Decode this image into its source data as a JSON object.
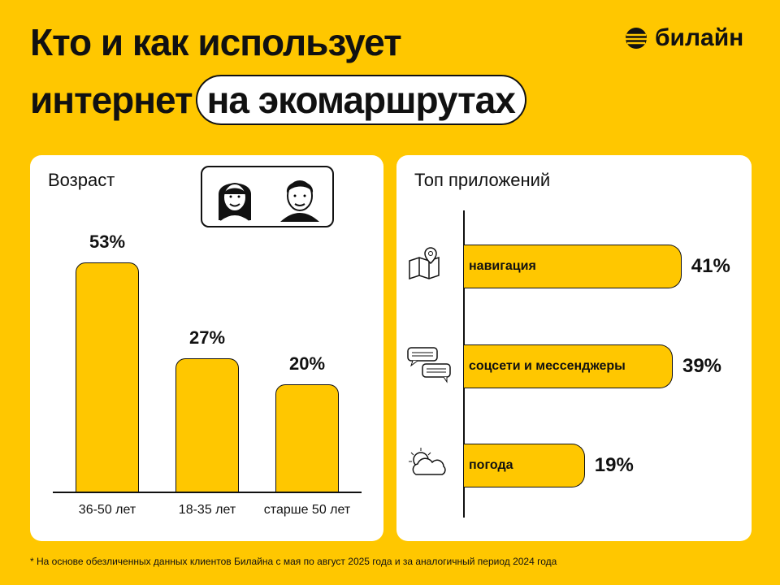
{
  "title_line1": "Кто и как использует",
  "title_line2": "интернет",
  "title_highlight": "на экомаршрутах",
  "brand": "билайн",
  "footnote": "* На основе обезличенных данных клиентов Билайна с мая по август 2025 года и за аналогичный период 2024 года",
  "colors": {
    "accent": "#FFC700",
    "text": "#111111",
    "card": "#FFFFFF"
  },
  "chart_data": [
    {
      "type": "bar",
      "title": "Возраст",
      "categories": [
        "36-50 лет",
        "18-35 лет",
        "старше 50 лет"
      ],
      "values": [
        53,
        27,
        20
      ],
      "labels": [
        "53%",
        "27%",
        "20%"
      ],
      "icons": [
        "woman-face-icon",
        "man-face-icon"
      ]
    },
    {
      "type": "bar",
      "orientation": "horizontal",
      "title": "Топ приложений",
      "categories": [
        "навигация",
        "соцсети и мессенджеры",
        "погода"
      ],
      "values": [
        41,
        39,
        19
      ],
      "labels": [
        "41%",
        "39%",
        "19%"
      ],
      "icons": [
        "map-pin-icon",
        "chat-bubbles-icon",
        "sun-cloud-icon"
      ]
    }
  ]
}
